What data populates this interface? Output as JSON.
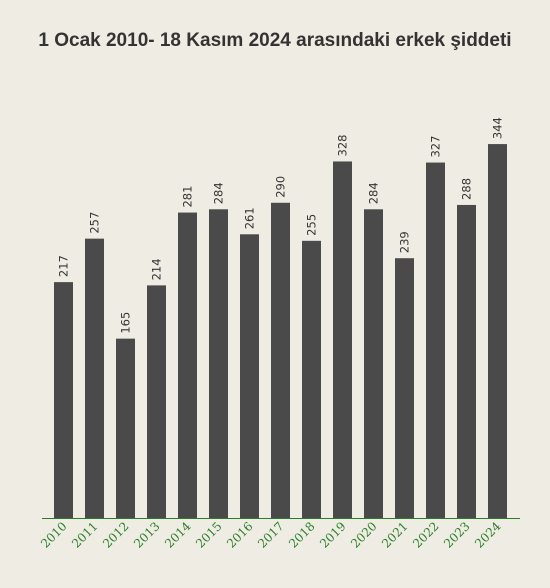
{
  "chart_data": {
    "type": "bar",
    "title": "1 Ocak 2010- 18 Kasım 2024 arasındaki erkek şiddeti",
    "xlabel": "",
    "ylabel": "",
    "categories": [
      "2010",
      "2011",
      "2012",
      "2013",
      "2014",
      "2015",
      "2016",
      "2017",
      "2018",
      "2019",
      "2020",
      "2021",
      "2022",
      "2023",
      "2024"
    ],
    "values": [
      217,
      257,
      165,
      214,
      281,
      284,
      261,
      290,
      255,
      328,
      284,
      239,
      327,
      288,
      344
    ],
    "ylim": [
      0,
      400
    ],
    "grid": false,
    "legend": "none",
    "colors": {
      "bar": "#4a4a4a",
      "axis": "#2a7d2a",
      "tick_text": "#2a7d2a",
      "background": "#efede3"
    }
  }
}
